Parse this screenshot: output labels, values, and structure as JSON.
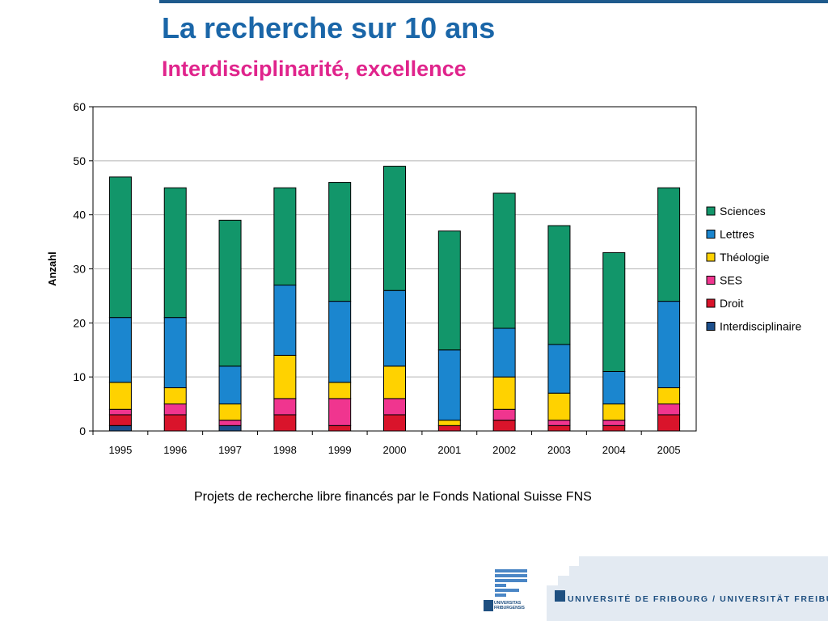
{
  "slide": {
    "title": "La recherche sur 10 ans",
    "subtitle": "Interdisciplinarité, excellence",
    "caption": "Projets de recherche libre financés par le Fonds National Suisse FNS"
  },
  "footer": {
    "university_name": "UNIVERSITÉ DE FRIBOURG / UNIVERSITÄT FREIBURG",
    "logo_text_line1": "UNIVERSITAS",
    "logo_text_line2": "FRIBURGENSIS"
  },
  "colors": {
    "title": "#1a66a8",
    "subtitle": "#e0248c",
    "Sciences": "#12966a",
    "Lettres": "#1b86cf",
    "Théologie": "#ffd200",
    "SES": "#f0358f",
    "Droit": "#d9142b",
    "Interdisciplinaire": "#1c4f8c"
  },
  "chart_data": {
    "type": "bar",
    "stacked": true,
    "ylabel": "Anzahl",
    "ylim": [
      0,
      60
    ],
    "yticks": [
      0,
      10,
      20,
      30,
      40,
      50,
      60
    ],
    "grid": true,
    "legend_position": "right",
    "categories": [
      "1995",
      "1996",
      "1997",
      "1998",
      "1999",
      "2000",
      "2001",
      "2002",
      "2003",
      "2004",
      "2005"
    ],
    "series": [
      {
        "name": "Interdisciplinaire",
        "values": [
          1,
          0,
          1,
          0,
          0,
          0,
          0,
          0,
          0,
          0,
          0
        ]
      },
      {
        "name": "Droit",
        "values": [
          2,
          3,
          0,
          3,
          1,
          3,
          1,
          2,
          1,
          1,
          3
        ]
      },
      {
        "name": "SES",
        "values": [
          1,
          2,
          1,
          3,
          5,
          3,
          0,
          2,
          1,
          1,
          2
        ]
      },
      {
        "name": "Théologie",
        "values": [
          5,
          3,
          3,
          8,
          3,
          6,
          1,
          6,
          5,
          3,
          3
        ]
      },
      {
        "name": "Lettres",
        "values": [
          12,
          13,
          7,
          13,
          15,
          14,
          13,
          9,
          9,
          6,
          16
        ]
      },
      {
        "name": "Sciences",
        "values": [
          26,
          24,
          27,
          18,
          22,
          23,
          22,
          25,
          22,
          22,
          21
        ]
      }
    ],
    "legend_order": [
      "Sciences",
      "Lettres",
      "Théologie",
      "SES",
      "Droit",
      "Interdisciplinaire"
    ]
  }
}
